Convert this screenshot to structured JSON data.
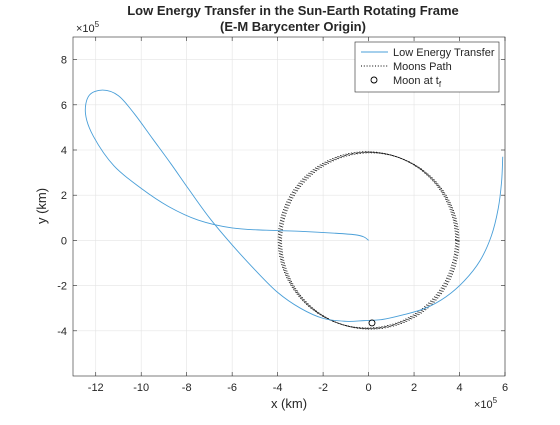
{
  "chart_data": {
    "type": "line",
    "title_line1": "Low Energy Transfer in the Sun-Earth Rotating Frame",
    "title_line2": "(E-M Barycenter Origin)",
    "xlabel": "x (km)",
    "ylabel": "y (km)",
    "x_exponent_base": "×10",
    "x_exponent_power": "5",
    "y_exponent_base": "×10",
    "y_exponent_power": "5",
    "xlim": [
      -1300000,
      600000
    ],
    "ylim": [
      -600000,
      900000
    ],
    "x_ticks": [
      -1200000,
      -1000000,
      -800000,
      -600000,
      -400000,
      -200000,
      0,
      200000,
      400000,
      600000
    ],
    "x_tick_labels": [
      "-12",
      "-10",
      "-8",
      "-6",
      "-4",
      "-2",
      "0",
      "2",
      "4",
      "6"
    ],
    "y_ticks": [
      -400000,
      -200000,
      0,
      200000,
      400000,
      600000,
      800000
    ],
    "y_tick_labels": [
      "-4",
      "-2",
      "0",
      "2",
      "4",
      "6",
      "8"
    ],
    "grid": true,
    "legend_position": "top-right",
    "legend": [
      {
        "label": "Low Energy Transfer",
        "style": "solid"
      },
      {
        "label": "Moons Path",
        "style": "dotted"
      },
      {
        "label_main": "Moon at t",
        "label_sub": "f",
        "style": "marker"
      }
    ],
    "series": [
      {
        "name": "Low Energy Transfer",
        "color": "#4a9fd8",
        "style": "solid",
        "points": [
          [
            0,
            0
          ],
          [
            -20000,
            15000
          ],
          [
            -60000,
            25000
          ],
          [
            -150000,
            32000
          ],
          [
            -300000,
            40000
          ],
          [
            -450000,
            45000
          ],
          [
            -600000,
            55000
          ],
          [
            -750000,
            90000
          ],
          [
            -880000,
            150000
          ],
          [
            -1000000,
            230000
          ],
          [
            -1120000,
            330000
          ],
          [
            -1210000,
            460000
          ],
          [
            -1245000,
            560000
          ],
          [
            -1230000,
            640000
          ],
          [
            -1170000,
            665000
          ],
          [
            -1100000,
            640000
          ],
          [
            -1030000,
            560000
          ],
          [
            -950000,
            450000
          ],
          [
            -870000,
            340000
          ],
          [
            -790000,
            225000
          ],
          [
            -700000,
            100000
          ],
          [
            -600000,
            -20000
          ],
          [
            -500000,
            -130000
          ],
          [
            -400000,
            -230000
          ],
          [
            -300000,
            -300000
          ],
          [
            -200000,
            -345000
          ],
          [
            -100000,
            -358000
          ],
          [
            -20000,
            -355000
          ],
          [
            60000,
            -350000
          ],
          [
            150000,
            -330000
          ],
          [
            250000,
            -300000
          ],
          [
            340000,
            -250000
          ],
          [
            420000,
            -180000
          ],
          [
            490000,
            -90000
          ],
          [
            540000,
            20000
          ],
          [
            570000,
            140000
          ],
          [
            585000,
            260000
          ],
          [
            590000,
            370000
          ]
        ]
      },
      {
        "name": "Moons Path",
        "color": "#000000",
        "style": "dotted",
        "circle": {
          "cx": 0,
          "cy": 0,
          "r": 390000,
          "strands": 4,
          "strand_spread": 20000
        }
      },
      {
        "name": "Moon at tf",
        "color": "#000000",
        "style": "marker",
        "point": [
          15000,
          -365000
        ]
      }
    ]
  }
}
